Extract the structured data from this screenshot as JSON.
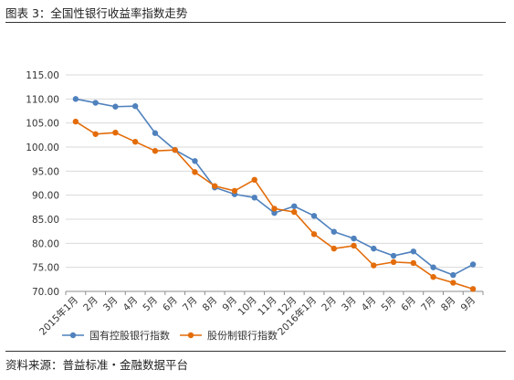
{
  "header": {
    "title": "图表 3：全国性银行收益率指数走势"
  },
  "footer": {
    "source": "资料来源：普益标准・金融数据平台"
  },
  "chart_data": {
    "type": "line",
    "title": "",
    "xlabel": "",
    "ylabel": "",
    "categories": [
      "2015年1月",
      "2月",
      "3月",
      "4月",
      "5月",
      "6月",
      "7月",
      "8月",
      "9月",
      "10月",
      "11月",
      "12月",
      "2016年1月",
      "2月",
      "3月",
      "4月",
      "5月",
      "6月",
      "7月",
      "8月",
      "9月"
    ],
    "y_ticks": [
      "115.00",
      "110.00",
      "105.00",
      "100.00",
      "95.00",
      "90.00",
      "85.00",
      "80.00",
      "75.00",
      "70.00"
    ],
    "ylim": [
      70,
      115
    ],
    "grid": "horizontal",
    "legend_position": "bottom",
    "series": [
      {
        "name": "国有控股银行指数",
        "color": "#4f81bd",
        "values": [
          110.0,
          109.2,
          108.4,
          108.5,
          102.9,
          99.4,
          97.1,
          91.6,
          90.2,
          89.5,
          86.3,
          87.7,
          85.7,
          82.4,
          81.0,
          78.9,
          77.4,
          78.3,
          75.0,
          73.4,
          75.6
        ]
      },
      {
        "name": "股份制银行指数",
        "color": "#e36c09",
        "values": [
          105.3,
          102.7,
          103.0,
          101.1,
          99.2,
          99.4,
          94.8,
          91.9,
          90.9,
          93.2,
          87.2,
          86.5,
          81.9,
          78.9,
          79.5,
          75.4,
          76.1,
          75.9,
          73.0,
          71.8,
          70.5
        ]
      }
    ]
  }
}
